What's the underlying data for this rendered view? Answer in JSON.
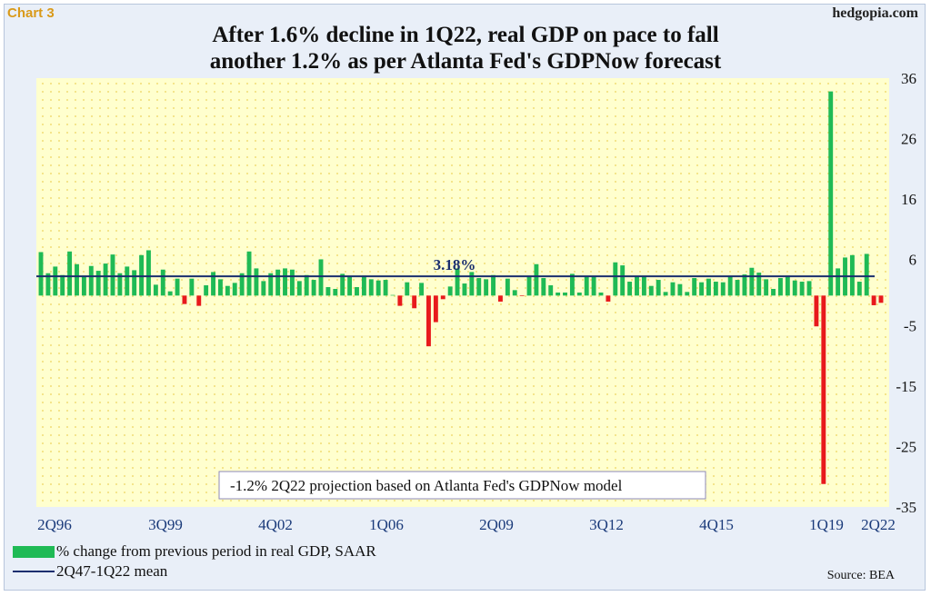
{
  "header": {
    "chart_label": "Chart 3",
    "site": "hedgopia.com",
    "title_line1": "After 1.6% decline in 1Q22, real GDP on pace to fall",
    "title_line2": "another 1.2% as per Atlanta Fed's GDPNow forecast"
  },
  "legend": {
    "bars": "% change from previous period in real GDP, SAAR",
    "line": "2Q47-1Q22 mean"
  },
  "source": "Source: BEA",
  "colors": {
    "positive": "#1fba55",
    "negative": "#e8191c",
    "mean_line": "#1a2e6e",
    "plot_bg": "#ffffce",
    "dots": "#ecd25a",
    "axis_text": "#1a3a7a"
  },
  "chart_data": {
    "type": "bar",
    "x_ticks": [
      "2Q96",
      "3Q99",
      "4Q02",
      "1Q06",
      "2Q09",
      "3Q12",
      "4Q15",
      "1Q19",
      "2Q22"
    ],
    "y_ticks": [
      36,
      26,
      16,
      6,
      -5,
      -15,
      -25,
      -35
    ],
    "ylim": [
      -35,
      36
    ],
    "y_axis_side": "right",
    "mean": {
      "value": 3.18,
      "label": "3.18%"
    },
    "annotation": "-1.2% 2Q22 projection based on Atlanta Fed's GDPNow model",
    "categories_first": "2Q96",
    "categories_last": "2Q22",
    "values": [
      7.2,
      3.7,
      4.8,
      3.4,
      7.3,
      5.2,
      3.3,
      4.9,
      4.1,
      5.3,
      6.8,
      3.7,
      4.8,
      4.2,
      6.7,
      7.5,
      1.8,
      4.3,
      0.7,
      2.8,
      -1.4,
      2.8,
      -1.7,
      1.7,
      3.9,
      2.7,
      1.6,
      2.1,
      3.7,
      7.3,
      4.5,
      2.4,
      3.7,
      4.3,
      4.5,
      4.3,
      2.4,
      3.4,
      2.6,
      6.0,
      1.4,
      1.1,
      3.6,
      3.1,
      1.4,
      3.3,
      2.7,
      2.5,
      2.6,
      0.1,
      -1.7,
      2.2,
      -2.1,
      2.1,
      -8.4,
      -4.4,
      -0.6,
      1.5,
      4.5,
      2.0,
      3.9,
      2.9,
      2.7,
      3.4,
      -1.0,
      2.8,
      0.9,
      -0.1,
      3.2,
      5.2,
      2.9,
      1.7,
      0.5,
      0.5,
      3.6,
      0.5,
      3.2,
      3.2,
      0.5,
      -1.0,
      5.5,
      5.0,
      2.3,
      3.2,
      3.2,
      1.6,
      2.6,
      0.6,
      2.2,
      1.9,
      0.6,
      2.9,
      2.2,
      2.8,
      2.3,
      2.2,
      3.2,
      2.6,
      3.5,
      4.6,
      3.8,
      2.7,
      1.1,
      2.9,
      3.3,
      2.5,
      2.3,
      2.4,
      -5.1,
      -31.2,
      33.8,
      4.5,
      6.3,
      6.7,
      2.3,
      6.9,
      -1.6,
      -1.2
    ]
  }
}
